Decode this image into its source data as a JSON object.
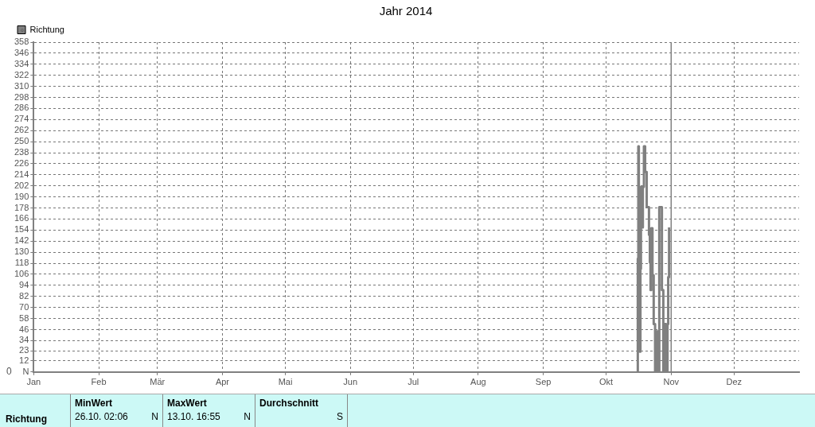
{
  "chart_data": [
    {
      "type": "step",
      "title": "Jahr 2014",
      "ylabel": "°",
      "legend": "top left",
      "grid": true,
      "line_style": "solid",
      "marker": "none",
      "xlim": [
        "2014-01-01",
        "2015-01-01"
      ],
      "xticks": [
        {
          "value": "2014-01-01",
          "label": "Jan"
        },
        {
          "value": "2014-02-01",
          "label": "Feb"
        },
        {
          "value": "2014-03-01",
          "label": "Mär"
        },
        {
          "value": "2014-04-01",
          "label": "Apr"
        },
        {
          "value": "2014-05-01",
          "label": "Mai"
        },
        {
          "value": "2014-06-01",
          "label": "Jun"
        },
        {
          "value": "2014-07-01",
          "label": "Jul"
        },
        {
          "value": "2014-08-01",
          "label": "Aug"
        },
        {
          "value": "2014-09-01",
          "label": "Sep"
        },
        {
          "value": "2014-10-01",
          "label": "Okt"
        },
        {
          "value": "2014-11-01",
          "label": "Nov"
        },
        {
          "value": "2014-12-01",
          "label": "Dez"
        }
      ],
      "ylim": [
        0,
        358
      ],
      "yticks": [
        {
          "value": 0,
          "label": "N"
        },
        12,
        23,
        34,
        46,
        58,
        70,
        82,
        94,
        106,
        118,
        130,
        142,
        154,
        166,
        178,
        190,
        202,
        214,
        226,
        238,
        250,
        262,
        274,
        286,
        298,
        310,
        322,
        334,
        346,
        358
      ],
      "ref_lines": [
        {
          "axis": "x",
          "value": "2014-11-01",
          "color": "#808080",
          "line_style": "solid"
        }
      ],
      "annotations": [
        "0"
      ],
      "series": [
        {
          "name": "Richtung",
          "color": "#808080",
          "x": [
            "2014-10-15T21:00",
            "2014-10-16T02:00",
            "2014-10-16T08:00",
            "2014-10-16T14:00",
            "2014-10-16T20:00",
            "2014-10-17T02:00",
            "2014-10-17T08:00",
            "2014-10-17T14:00",
            "2014-10-17T20:00",
            "2014-10-18T04:00",
            "2014-10-18T12:00",
            "2014-10-19T00:00",
            "2014-10-19T14:00",
            "2014-10-20T08:00",
            "2014-10-21T10:00",
            "2014-10-21T20:00",
            "2014-10-22T04:00",
            "2014-10-22T12:00",
            "2014-10-23T02:00",
            "2014-10-23T16:00",
            "2014-10-24T08:00",
            "2014-10-25T00:00",
            "2014-10-25T18:00",
            "2014-10-26T08:00",
            "2014-10-27T14:00",
            "2014-10-28T06:00",
            "2014-10-28T20:00",
            "2014-10-29T14:00",
            "2014-10-30T06:00",
            "2014-10-30T14:00",
            "2014-10-31T00:00"
          ],
          "values": [
            0,
            123,
            245,
            172,
            96,
            22,
            112,
            201,
            186,
            157,
            201,
            245,
            217,
            179,
            149,
            119,
            89,
            156,
            105,
            52,
            0,
            44,
            0,
            179,
            89,
            0,
            52,
            0,
            52,
            103,
            157
          ]
        }
      ]
    },
    {
      "type": "other",
      "annotations": [
        "Richtung",
        "MinWert",
        "26.10.  02:06",
        "N",
        "MaxWert",
        "13.10.  16:55",
        "N",
        "Durchschnitt",
        "S"
      ]
    }
  ]
}
